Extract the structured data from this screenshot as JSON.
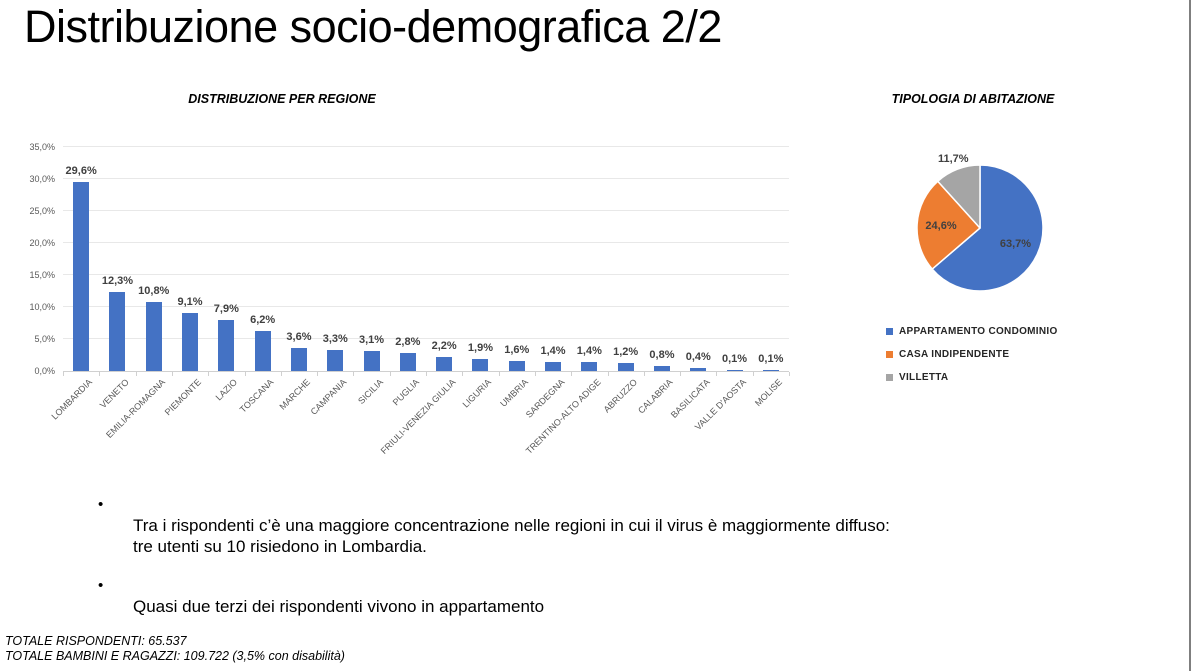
{
  "slide": {
    "title": "Distribuzione socio-demografica 2/2",
    "bullet_glyph": "•",
    "bullets": [
      "Tra i rispondenti c’è una maggiore concentrazione nelle regioni in cui il virus è maggiormente diffuso:\ntre utenti su 10 risiedono in Lombardia.",
      "Quasi due terzi dei rispondenti vivono in appartamento"
    ],
    "footer": [
      "TOTALE RISPONDENTI: 65.537",
      "TOTALE BAMBINI E RAGAZZI: 109.722  (3,5% con disabilità)"
    ]
  },
  "colors": {
    "bar": "#4472C4",
    "gridline": "#E8E8E8",
    "axis": "#D0D0D0",
    "tick_text": "#595959",
    "value_text": "#404040"
  },
  "chart_data": [
    {
      "type": "bar",
      "title": "DISTRIBUZIONE PER REGIONE",
      "categories": [
        "LOMBARDIA",
        "VENETO",
        "EMILIA-ROMAGNA",
        "PIEMONTE",
        "LAZIO",
        "TOSCANA",
        "MARCHE",
        "CAMPANIA",
        "SICILIA",
        "PUGLIA",
        "FRIULI-VENEZIA GIULIA",
        "LIGURIA",
        "UMBRIA",
        "SARDEGNA",
        "TRENTINO-ALTO ADIGE",
        "ABRUZZO",
        "CALABRIA",
        "BASILICATA",
        "VALLE D'AOSTA",
        "MOLISE"
      ],
      "values": [
        29.6,
        12.3,
        10.8,
        9.1,
        7.9,
        6.2,
        3.6,
        3.3,
        3.1,
        2.8,
        2.2,
        1.9,
        1.6,
        1.4,
        1.4,
        1.2,
        0.8,
        0.4,
        0.1,
        0.1
      ],
      "labels": [
        "29,6%",
        "12,3%",
        "10,8%",
        "9,1%",
        "7,9%",
        "6,2%",
        "3,6%",
        "3,3%",
        "3,1%",
        "2,8%",
        "2,2%",
        "1,9%",
        "1,6%",
        "1,4%",
        "1,4%",
        "1,2%",
        "0,8%",
        "0,4%",
        "0,1%",
        "0,1%"
      ],
      "xlabel": "",
      "ylabel": "",
      "ylim": [
        0,
        35
      ],
      "ytick_values": [
        0,
        5,
        10,
        15,
        20,
        25,
        30,
        35
      ],
      "ytick_labels": [
        "0,0%",
        "5,0%",
        "10,0%",
        "15,0%",
        "20,0%",
        "25,0%",
        "30,0%",
        "35,0%"
      ],
      "grid": true,
      "bar_color": "#4472C4"
    },
    {
      "type": "pie",
      "title": "TIPOLOGIA DI ABITAZIONE",
      "start_angle_deg": 0,
      "legend_position": "bottom-left",
      "slices": [
        {
          "label": "APPARTAMENTO CONDOMINIO",
          "value": 63.7,
          "display": "63,7%",
          "color": "#4472C4"
        },
        {
          "label": "CASA INDIPENDENTE",
          "value": 24.6,
          "display": "24,6%",
          "color": "#ED7D31"
        },
        {
          "label": "VILLETTA",
          "value": 11.7,
          "display": "11,7%",
          "color": "#A5A5A5"
        }
      ]
    }
  ]
}
